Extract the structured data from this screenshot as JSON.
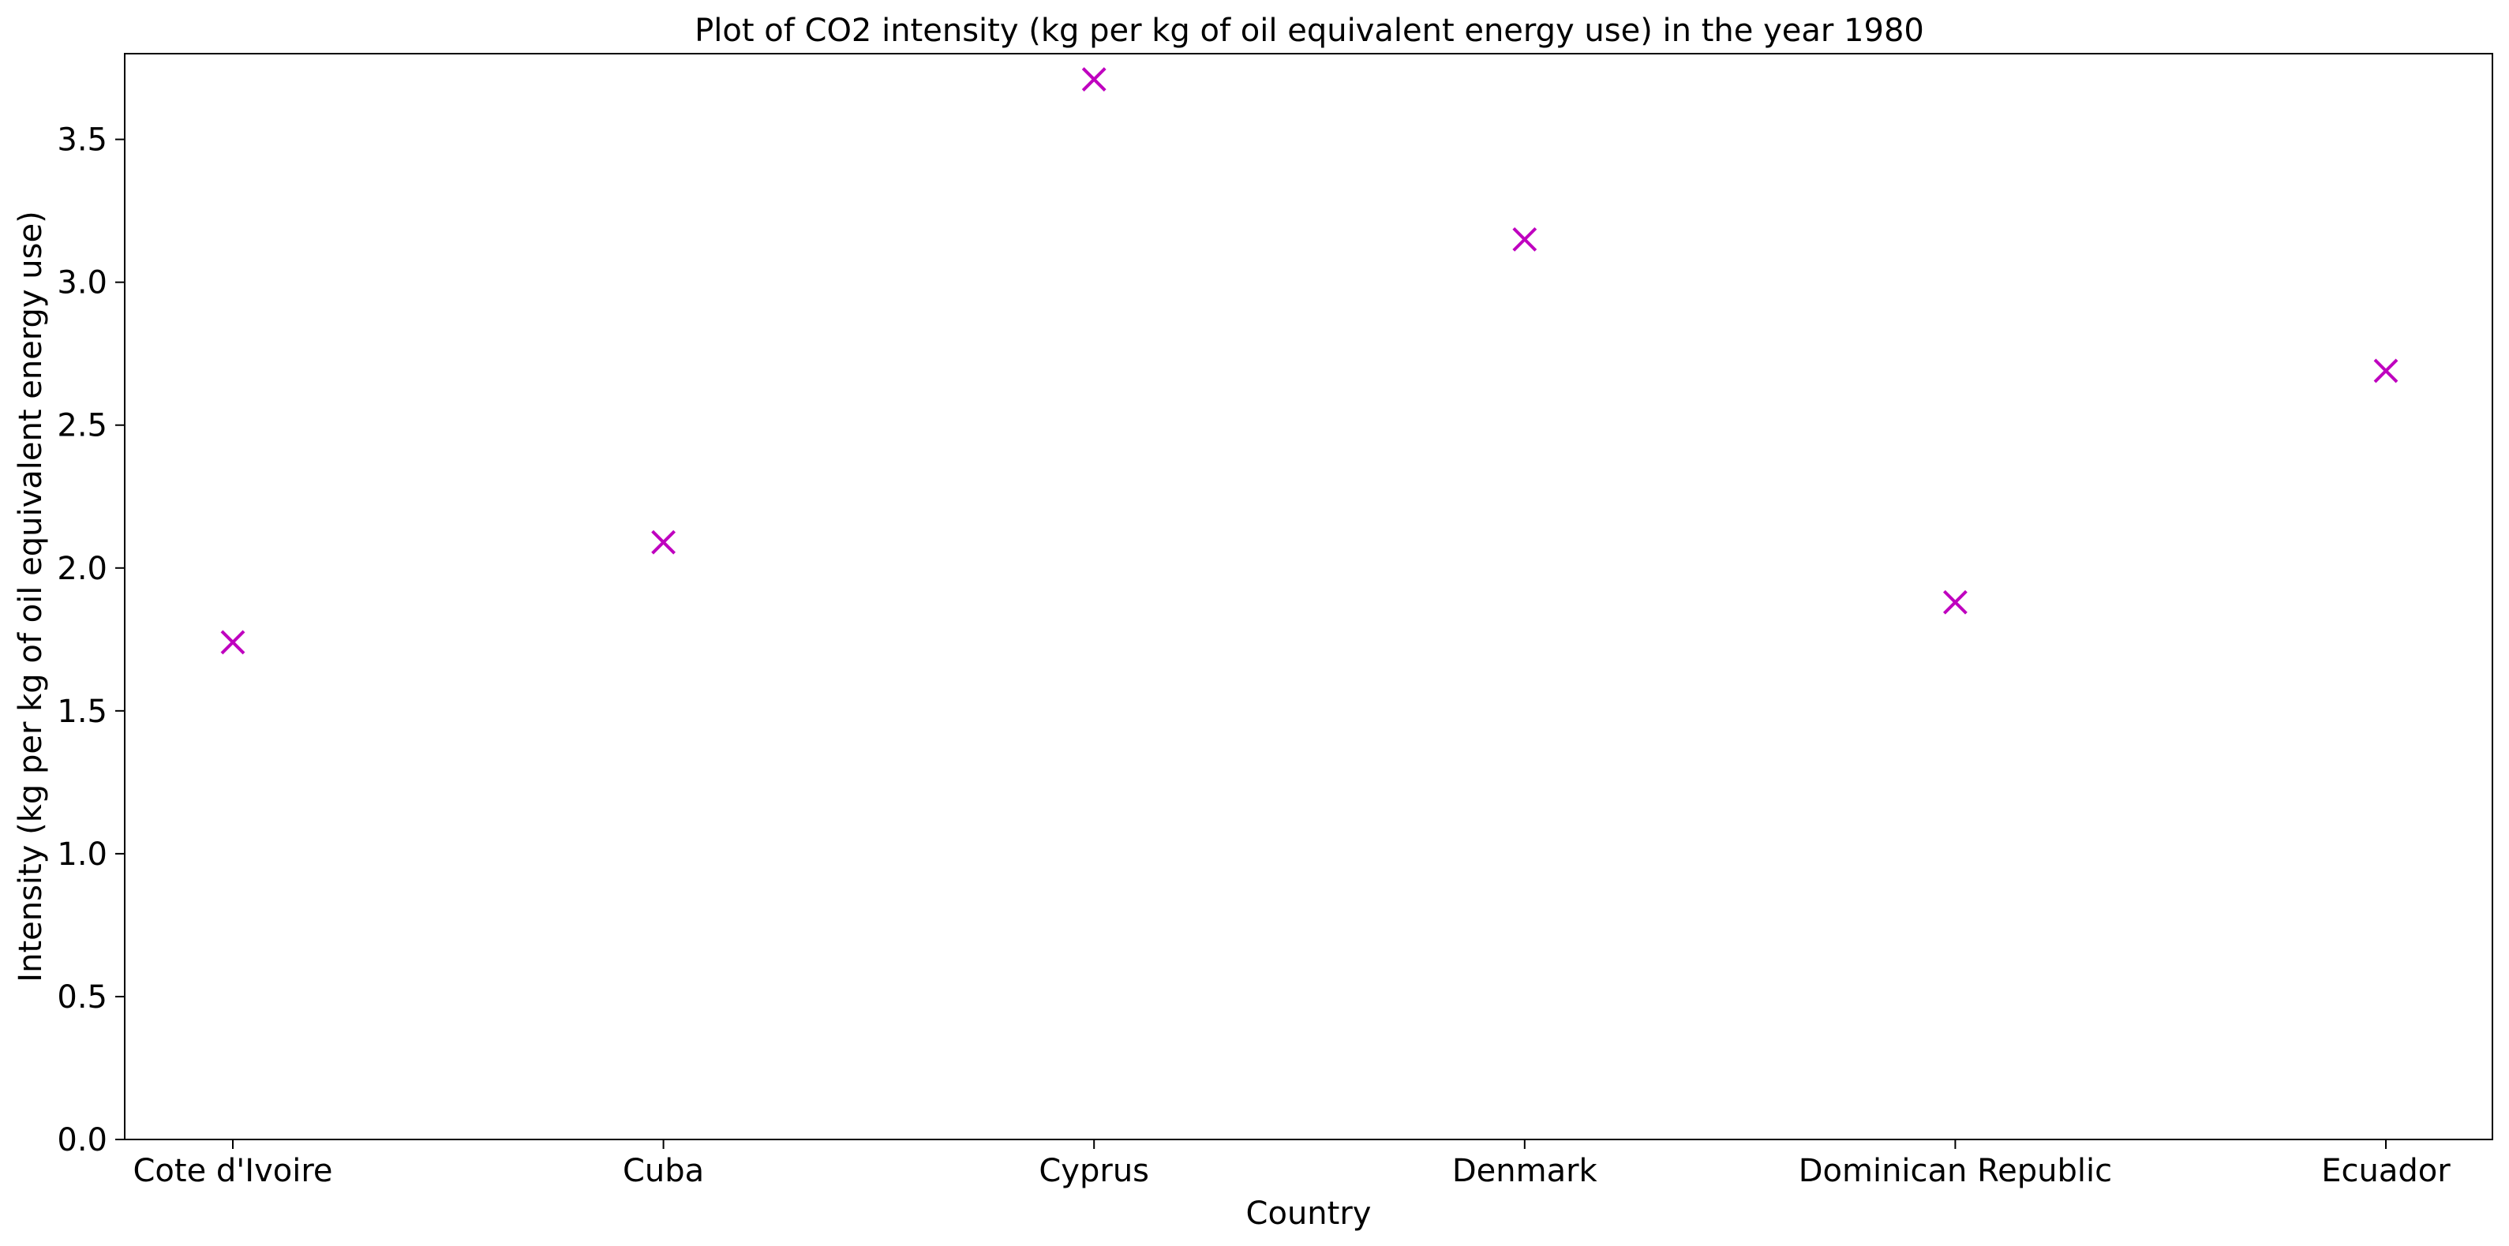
{
  "chart_data": {
    "type": "scatter",
    "title": "Plot of CO2 intensity (kg per kg of oil equivalent energy use) in the year 1980",
    "xlabel": "Country",
    "ylabel": "Intensity (kg per kg of oil equivalent energy use)",
    "categories": [
      "Cote d'Ivoire",
      "Cuba",
      "Cyprus",
      "Denmark",
      "Dominican Republic",
      "Ecuador"
    ],
    "values": [
      1.74,
      2.09,
      3.71,
      3.15,
      1.88,
      2.69
    ],
    "ylim": [
      0,
      3.8
    ],
    "yticks": [
      "0.0",
      "0.5",
      "1.0",
      "1.5",
      "2.0",
      "2.5",
      "3.0",
      "3.5"
    ],
    "marker": "x",
    "marker_color": "#bf00bf",
    "grid": false,
    "legend": "none"
  }
}
